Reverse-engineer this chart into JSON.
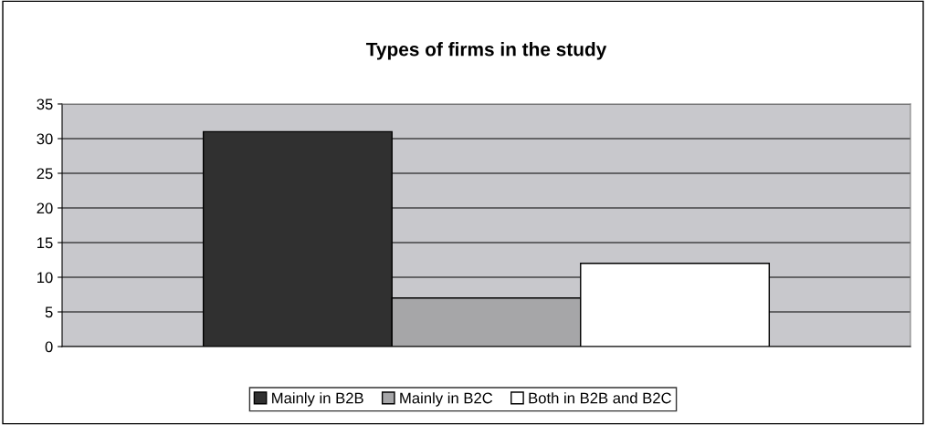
{
  "chart_data": {
    "type": "bar",
    "title": "Types of firms in the study",
    "categories": [
      null
    ],
    "series": [
      {
        "name": "Mainly in B2B",
        "color": "#303030",
        "values": [
          31
        ]
      },
      {
        "name": "Mainly in B2C",
        "color": "#a6a6a8",
        "values": [
          7
        ]
      },
      {
        "name": "Both in B2B and B2C",
        "color": "#ffffff",
        "values": [
          12
        ]
      }
    ],
    "ylim": [
      0,
      35
    ],
    "yticks": [
      0,
      5,
      10,
      15,
      20,
      25,
      30,
      35
    ],
    "grid": "y",
    "legend": "bottom"
  }
}
